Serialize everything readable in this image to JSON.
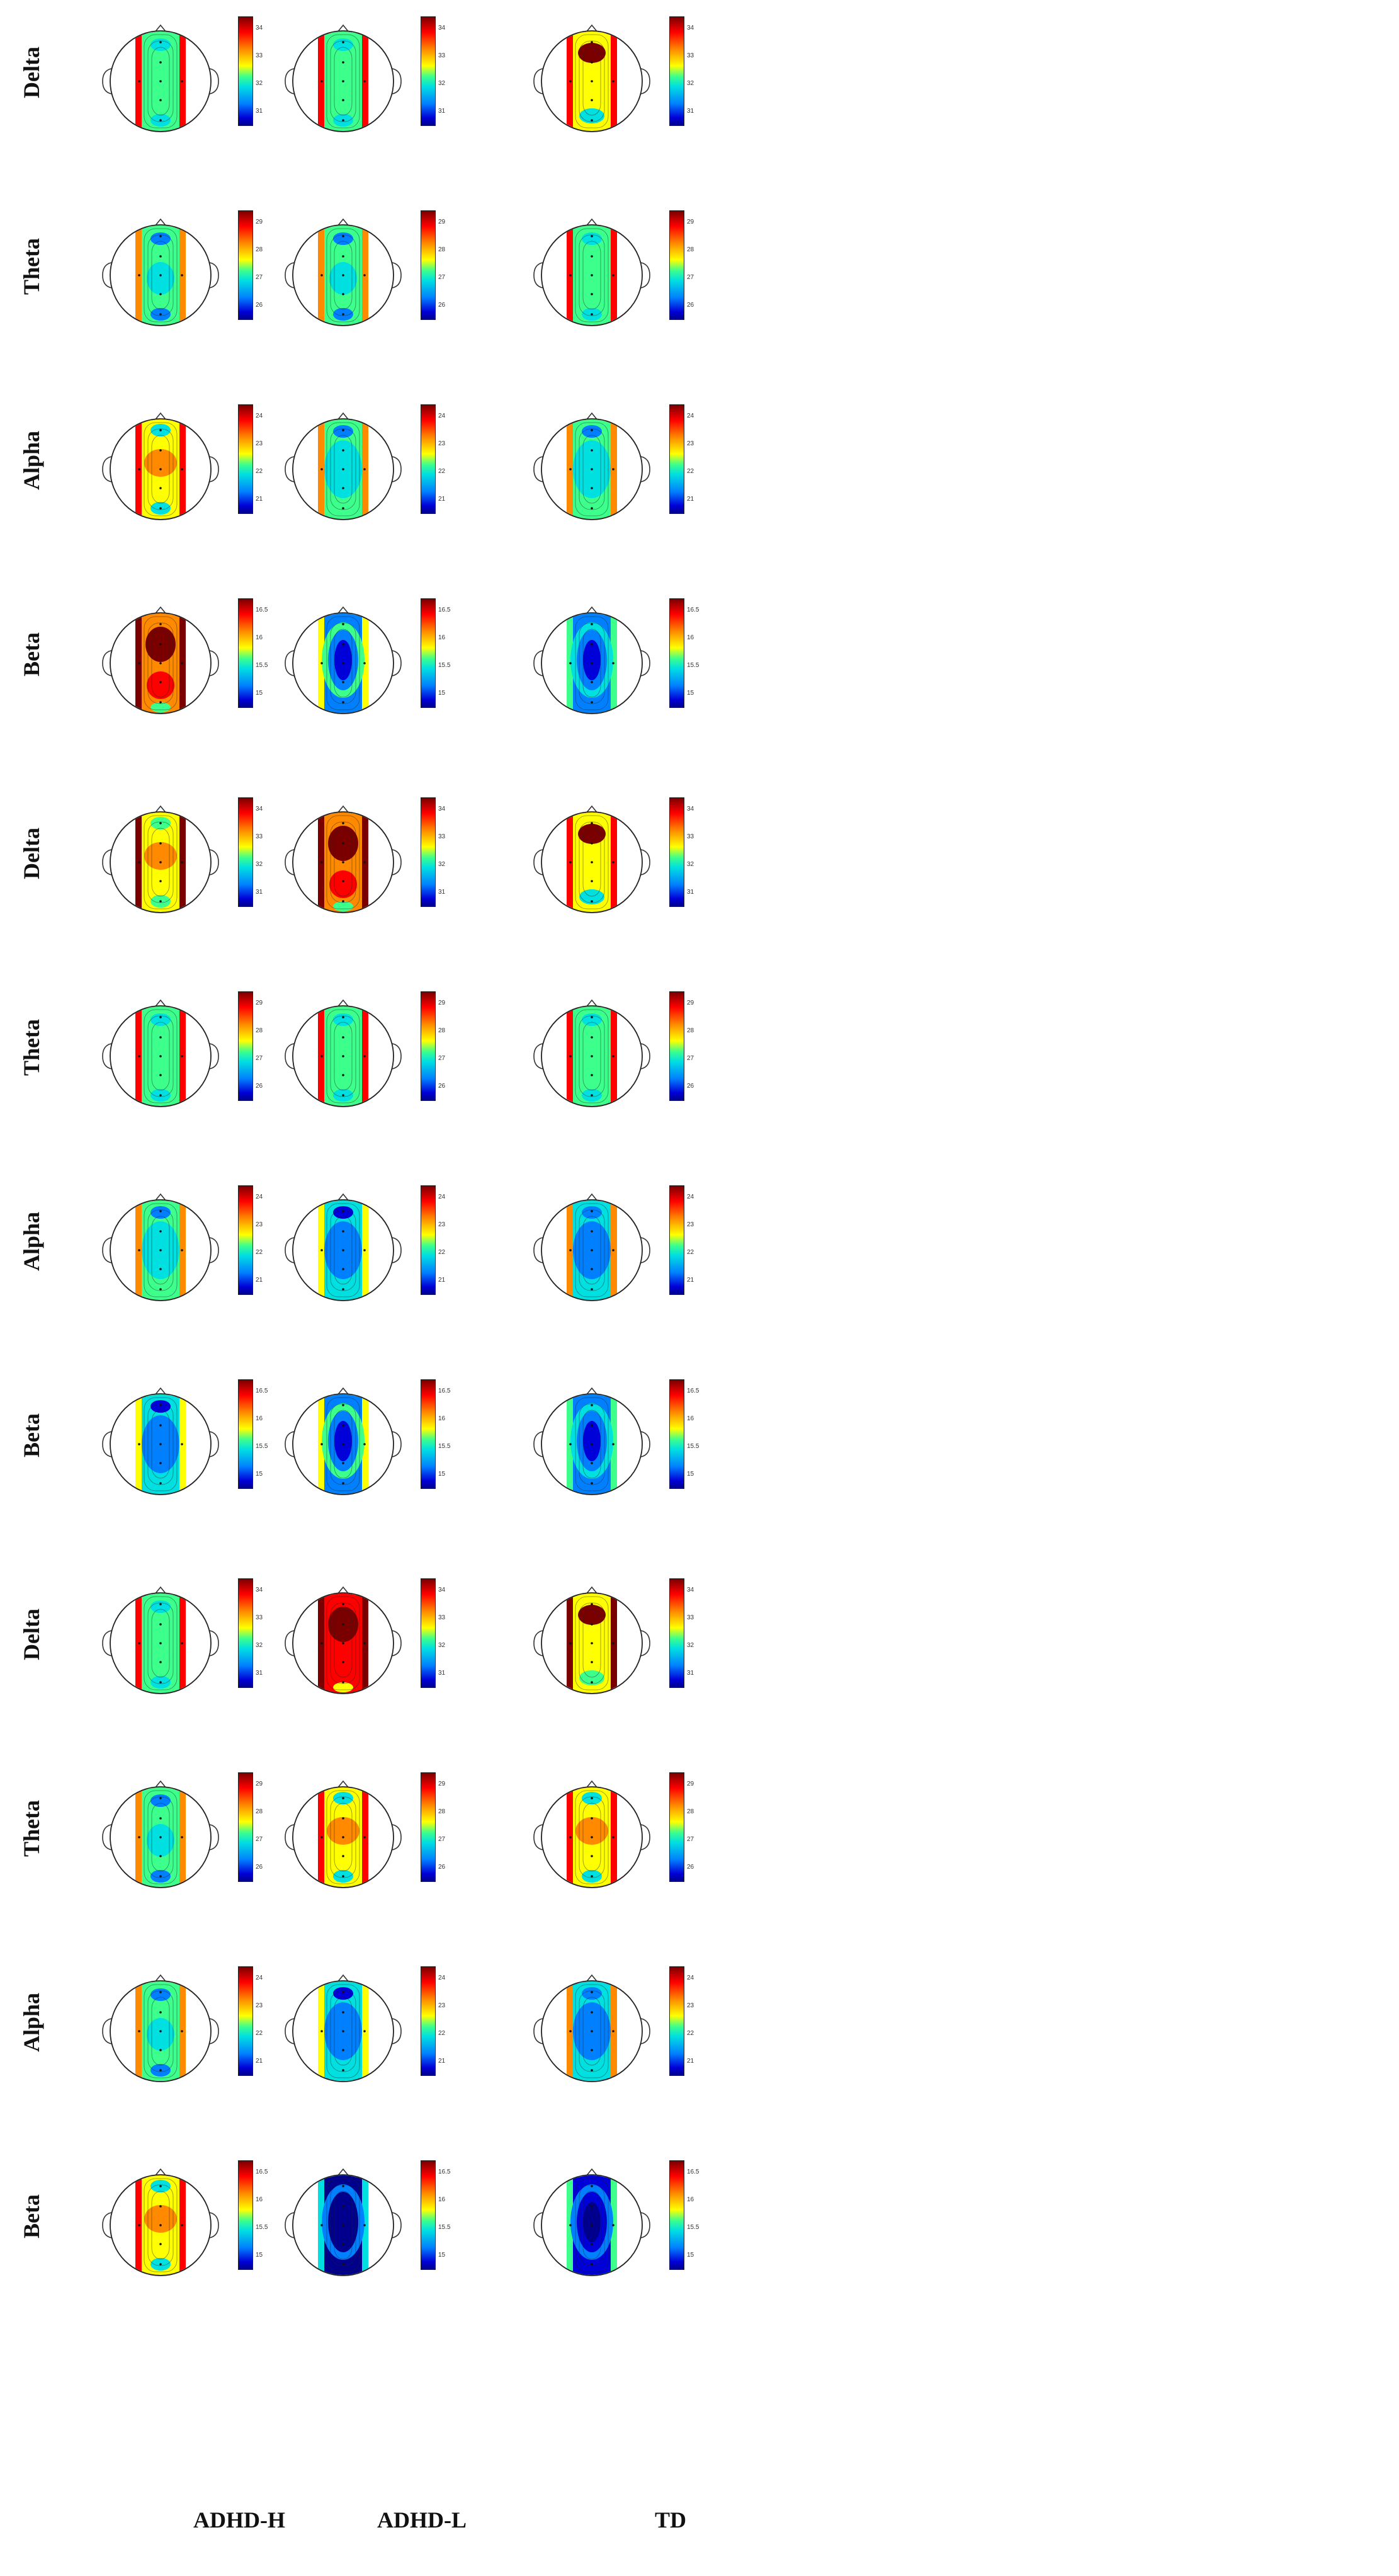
{
  "columns": [
    {
      "label": "ADHD-H"
    },
    {
      "label": "ADHD-L"
    },
    {
      "label": "TD"
    }
  ],
  "colors": {
    "scale": [
      "#7a0000",
      "#ff0000",
      "#ff8a00",
      "#ffff00",
      "#3cff8c",
      "#00e0e0",
      "#0080ff",
      "#0000d8",
      "#00008c"
    ]
  },
  "panels": [
    {
      "rows": [
        {
          "band": "Delta",
          "ticks": [
            "34",
            "33",
            "32",
            "31"
          ],
          "maps": [
            {
              "pattern": "mid",
              "level": 0.55
            },
            {
              "pattern": "mid",
              "level": 0.52
            },
            {
              "pattern": "frontal_hot",
              "level": 0.6
            }
          ]
        },
        {
          "band": "Theta",
          "ticks": [
            "29",
            "28",
            "27",
            "26"
          ],
          "maps": [
            {
              "pattern": "mid",
              "level": 0.5
            },
            {
              "pattern": "mid",
              "level": 0.5
            },
            {
              "pattern": "mid",
              "level": 0.52
            }
          ]
        },
        {
          "band": "Alpha",
          "ticks": [
            "24",
            "23",
            "22",
            "21"
          ],
          "maps": [
            {
              "pattern": "mid_warm",
              "level": 0.62
            },
            {
              "pattern": "center_cool",
              "level": 0.45
            },
            {
              "pattern": "center_cool",
              "level": 0.45
            }
          ]
        },
        {
          "band": "Beta",
          "ticks": [
            "16.5",
            "16",
            "15.5",
            "15"
          ],
          "maps": [
            {
              "pattern": "hot",
              "level": 0.75
            },
            {
              "pattern": "center_blue",
              "level": 0.3
            },
            {
              "pattern": "center_blue",
              "level": 0.25
            }
          ]
        }
      ]
    },
    {
      "rows": [
        {
          "band": "Delta",
          "ticks": [
            "34",
            "33",
            "32",
            "31"
          ],
          "maps": [
            {
              "pattern": "mid_warm",
              "level": 0.65
            },
            {
              "pattern": "hot",
              "level": 0.75
            },
            {
              "pattern": "frontal_hot",
              "level": 0.6
            }
          ]
        },
        {
          "band": "Theta",
          "ticks": [
            "29",
            "28",
            "27",
            "26"
          ],
          "maps": [
            {
              "pattern": "mid",
              "level": 0.55
            },
            {
              "pattern": "mid",
              "level": 0.55
            },
            {
              "pattern": "mid",
              "level": 0.52
            }
          ]
        },
        {
          "band": "Alpha",
          "ticks": [
            "24",
            "23",
            "22",
            "21"
          ],
          "maps": [
            {
              "pattern": "center_cool",
              "level": 0.45
            },
            {
              "pattern": "center_cool",
              "level": 0.35
            },
            {
              "pattern": "center_cool",
              "level": 0.4
            }
          ]
        },
        {
          "band": "Beta",
          "ticks": [
            "16.5",
            "16",
            "15.5",
            "15"
          ],
          "maps": [
            {
              "pattern": "center_cool",
              "level": 0.32
            },
            {
              "pattern": "center_blue",
              "level": 0.3
            },
            {
              "pattern": "center_blue",
              "level": 0.22
            }
          ]
        }
      ]
    },
    {
      "rows": [
        {
          "band": "Delta",
          "ticks": [
            "34",
            "33",
            "32",
            "31"
          ],
          "maps": [
            {
              "pattern": "mid",
              "level": 0.52
            },
            {
              "pattern": "hot",
              "level": 0.85
            },
            {
              "pattern": "frontal_hot",
              "level": 0.65
            }
          ]
        },
        {
          "band": "Theta",
          "ticks": [
            "29",
            "28",
            "27",
            "26"
          ],
          "maps": [
            {
              "pattern": "mid",
              "level": 0.5
            },
            {
              "pattern": "mid_warm",
              "level": 0.62
            },
            {
              "pattern": "mid_warm",
              "level": 0.62
            }
          ]
        },
        {
          "band": "Alpha",
          "ticks": [
            "24",
            "23",
            "22",
            "21"
          ],
          "maps": [
            {
              "pattern": "mid",
              "level": 0.5
            },
            {
              "pattern": "center_cool",
              "level": 0.38
            },
            {
              "pattern": "center_cool",
              "level": 0.4
            }
          ]
        },
        {
          "band": "Beta",
          "ticks": [
            "16.5",
            "16",
            "15.5",
            "15"
          ],
          "maps": [
            {
              "pattern": "mid_warm",
              "level": 0.6
            },
            {
              "pattern": "center_blue",
              "level": 0.05
            },
            {
              "pattern": "center_blue",
              "level": 0.15
            }
          ]
        }
      ]
    }
  ]
}
